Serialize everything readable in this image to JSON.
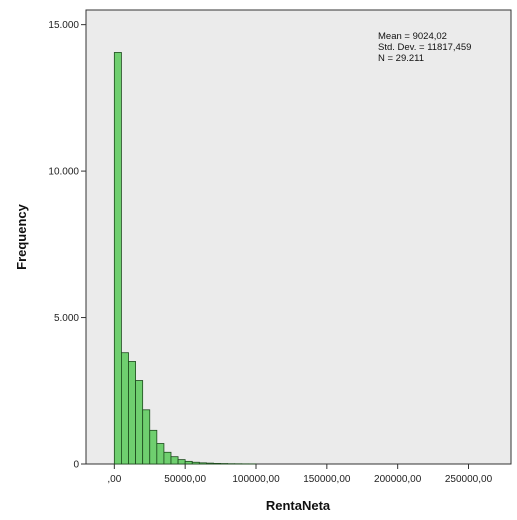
{
  "chart_data": {
    "type": "bar",
    "subtype": "histogram",
    "xlabel": "RentaNeta",
    "ylabel": "Frequency",
    "xlim": [
      -20000,
      280000
    ],
    "ylim": [
      0,
      15500
    ],
    "bin_width": 5000,
    "x_ticks": [
      {
        "value": 0,
        "label": ",00"
      },
      {
        "value": 50000,
        "label": "50000,00"
      },
      {
        "value": 100000,
        "label": "100000,00"
      },
      {
        "value": 150000,
        "label": "150000,00"
      },
      {
        "value": 200000,
        "label": "200000,00"
      },
      {
        "value": 250000,
        "label": "250000,00"
      }
    ],
    "y_ticks": [
      {
        "value": 0,
        "label": "0"
      },
      {
        "value": 5000,
        "label": "5.000"
      },
      {
        "value": 10000,
        "label": "10.000"
      },
      {
        "value": 15000,
        "label": "15.000"
      }
    ],
    "bins": [
      {
        "x": 0,
        "count": 14050
      },
      {
        "x": 5000,
        "count": 3800
      },
      {
        "x": 10000,
        "count": 3500
      },
      {
        "x": 15000,
        "count": 2850
      },
      {
        "x": 20000,
        "count": 1850
      },
      {
        "x": 25000,
        "count": 1150
      },
      {
        "x": 30000,
        "count": 700
      },
      {
        "x": 35000,
        "count": 400
      },
      {
        "x": 40000,
        "count": 250
      },
      {
        "x": 45000,
        "count": 150
      },
      {
        "x": 50000,
        "count": 90
      },
      {
        "x": 55000,
        "count": 60
      },
      {
        "x": 60000,
        "count": 40
      },
      {
        "x": 65000,
        "count": 30
      },
      {
        "x": 70000,
        "count": 20
      },
      {
        "x": 75000,
        "count": 15
      },
      {
        "x": 80000,
        "count": 10
      },
      {
        "x": 85000,
        "count": 8
      },
      {
        "x": 90000,
        "count": 5
      },
      {
        "x": 95000,
        "count": 4
      }
    ],
    "stats": {
      "mean": "Mean = 9024,02",
      "std_dev": "Std. Dev. = 11817,459",
      "n": "N = 29.211"
    },
    "colors": {
      "bar_fill": "#6fcf6f",
      "bar_stroke": "#1c4a1c",
      "plot_bg": "#ebebeb"
    }
  }
}
